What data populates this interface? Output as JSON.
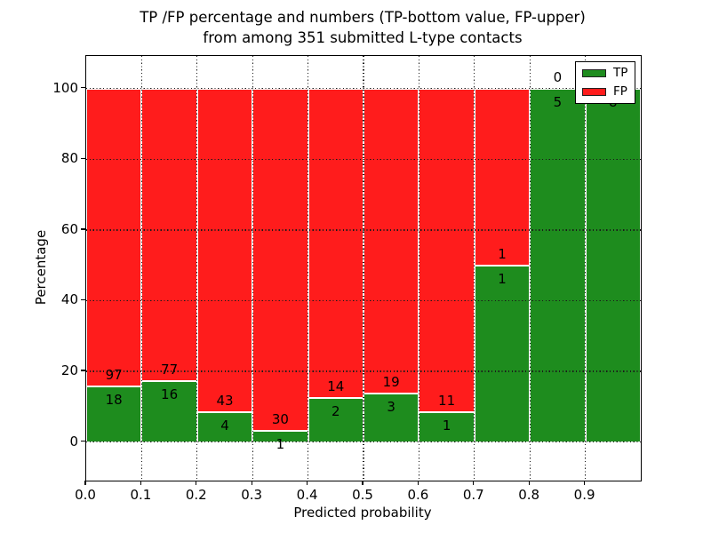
{
  "chart_data": {
    "type": "bar",
    "subtype": "stacked_percentage_histogram",
    "title_line1": "TP /FP percentage and numbers (TP-bottom value, FP-upper)",
    "title_line2": "from among 351 submitted L-type contacts",
    "xlabel": "Predicted probability",
    "ylabel": "Percentage",
    "total_contacts": 351,
    "x_ticks": [
      "0.0",
      "0.1",
      "0.2",
      "0.3",
      "0.4",
      "0.5",
      "0.6",
      "0.7",
      "0.8",
      "0.9"
    ],
    "x_tick_values": [
      0.0,
      0.1,
      0.2,
      0.3,
      0.4,
      0.5,
      0.6,
      0.7,
      0.8,
      0.9
    ],
    "y_ticks": [
      "0",
      "20",
      "40",
      "60",
      "80",
      "100"
    ],
    "y_tick_values": [
      0,
      20,
      40,
      60,
      80,
      100
    ],
    "xlim": [
      0.0,
      1.0
    ],
    "ylim": [
      -10.9,
      109.2
    ],
    "bin_width": 0.1,
    "bin_starts": [
      0.0,
      0.1,
      0.2,
      0.3,
      0.4,
      0.5,
      0.6,
      0.7,
      0.8,
      0.9
    ],
    "series": [
      {
        "name": "TP",
        "color": "#1e8c1e",
        "values": [
          18,
          16,
          4,
          1,
          2,
          3,
          1,
          1,
          5,
          8
        ]
      },
      {
        "name": "FP",
        "color": "#ff1c1c",
        "values": [
          97,
          77,
          43,
          30,
          14,
          19,
          11,
          1,
          0,
          0
        ]
      }
    ],
    "legend": {
      "position": "upper right",
      "entries": [
        {
          "label": "TP",
          "color": "#1e8c1e"
        },
        {
          "label": "FP",
          "color": "#ff1c1c"
        }
      ]
    },
    "grid": true,
    "colors": {
      "background": "#ffffff",
      "bar_edge": "#ffffff",
      "grid": "#1a1a1a",
      "text": "#000000",
      "spine": "#000000"
    }
  }
}
